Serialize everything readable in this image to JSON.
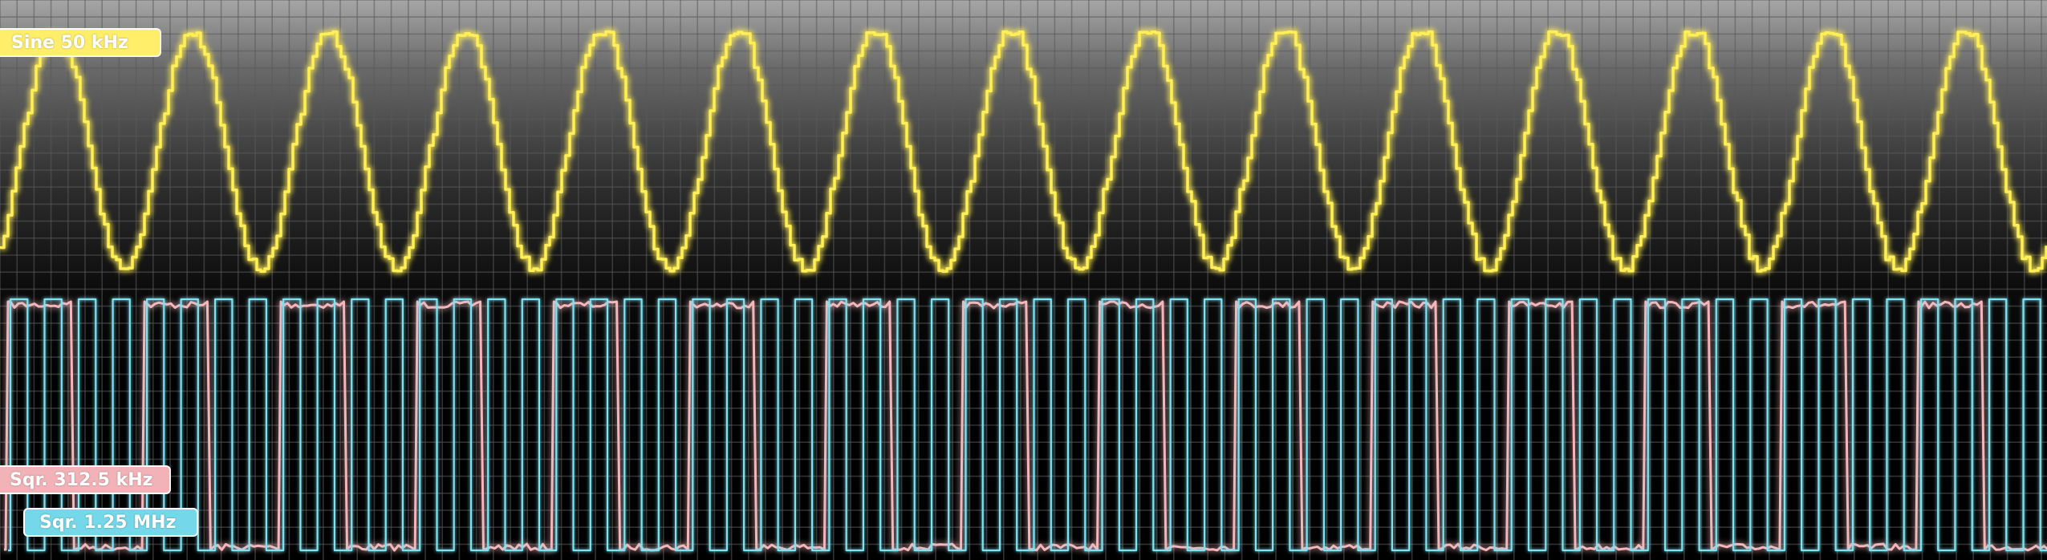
{
  "chart_data": {
    "type": "line",
    "title": "",
    "xlabel": "",
    "ylabel": "",
    "grid": true,
    "series": [
      {
        "name": "Sine 50 kHz",
        "waveform": "sine",
        "frequency_khz": 50,
        "cycles_visible": 15,
        "color": "#ffee55",
        "label_bg": "#ffee6a"
      },
      {
        "name": "Sqr. 312.5 kHz",
        "waveform": "square",
        "frequency_khz": 312.5,
        "cycles_visible": 15,
        "color": "#f4b6bb",
        "label_bg": "#f2b3b8"
      },
      {
        "name": "Sqr. 1.25 MHz",
        "waveform": "square",
        "frequency_khz": 1250,
        "cycles_visible": 60,
        "color": "#7fe2f0",
        "label_bg": "#74d8ea"
      }
    ]
  },
  "labels": {
    "sine": "Sine 50 kHz",
    "sq1": "Sqr. 312.5 kHz",
    "sq2": "Sqr. 1.25 MHz"
  },
  "colors": {
    "grid": "#5a5a5a",
    "background_top": "#a6a6a6",
    "background_bottom": "#000000"
  }
}
